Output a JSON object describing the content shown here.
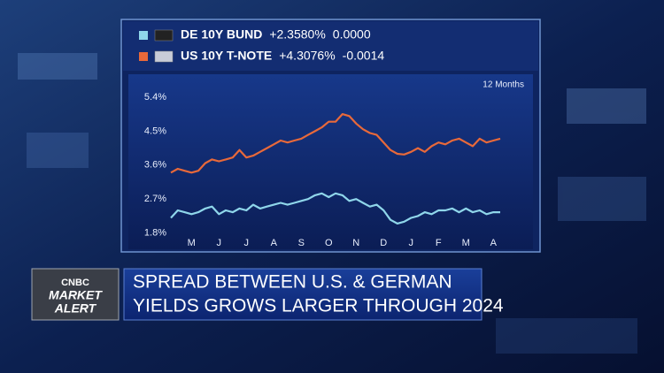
{
  "chart_data": {
    "type": "line",
    "period": "12 Months",
    "categories": [
      null,
      null,
      null,
      "M",
      null,
      null,
      null,
      "J",
      null,
      null,
      null,
      "J",
      null,
      null,
      null,
      "A",
      null,
      null,
      null,
      "S",
      null,
      null,
      null,
      "O",
      null,
      null,
      null,
      "N",
      null,
      null,
      null,
      "D",
      null,
      null,
      null,
      "J",
      null,
      null,
      null,
      "F",
      null,
      null,
      null,
      "M",
      null,
      null,
      null,
      "A",
      null
    ],
    "series": [
      {
        "name": "DE 10Y BUND",
        "last": "+2.3580%",
        "change": "0.0000",
        "color": "#8fd6ea",
        "values": [
          2.2,
          2.4,
          2.35,
          2.3,
          2.35,
          2.45,
          2.5,
          2.3,
          2.4,
          2.35,
          2.45,
          2.4,
          2.55,
          2.45,
          2.5,
          2.55,
          2.6,
          2.55,
          2.6,
          2.65,
          2.7,
          2.8,
          2.85,
          2.75,
          2.85,
          2.8,
          2.65,
          2.7,
          2.6,
          2.5,
          2.55,
          2.4,
          2.15,
          2.05,
          2.1,
          2.2,
          2.25,
          2.35,
          2.3,
          2.4,
          2.4,
          2.45,
          2.35,
          2.45,
          2.35,
          2.4,
          2.3,
          2.35,
          2.35
        ]
      },
      {
        "name": "US 10Y T-NOTE",
        "last": "+4.3076%",
        "change": "-0.0014",
        "color": "#e8693a",
        "values": [
          3.4,
          3.5,
          3.45,
          3.4,
          3.45,
          3.65,
          3.75,
          3.7,
          3.75,
          3.8,
          4.0,
          3.8,
          3.85,
          3.95,
          4.05,
          4.15,
          4.25,
          4.2,
          4.25,
          4.3,
          4.4,
          4.5,
          4.6,
          4.75,
          4.75,
          4.95,
          4.9,
          4.7,
          4.55,
          4.45,
          4.4,
          4.2,
          4.0,
          3.9,
          3.88,
          3.95,
          4.05,
          3.95,
          4.1,
          4.2,
          4.15,
          4.25,
          4.3,
          4.2,
          4.1,
          4.3,
          4.2,
          4.25,
          4.3
        ]
      }
    ],
    "ylim": [
      1.65,
      5.75
    ],
    "yticks": [
      {
        "value": 1.8,
        "label": "1.8%"
      },
      {
        "value": 2.7,
        "label": "2.7%"
      },
      {
        "value": 3.6,
        "label": "3.6%"
      },
      {
        "value": 4.5,
        "label": "4.5%"
      },
      {
        "value": 5.4,
        "label": "5.4%"
      }
    ]
  },
  "logo": {
    "brand": "CNBC",
    "line1": "MARKET",
    "line2": "ALERT"
  },
  "headline": [
    "SPREAD BETWEEN U.S. & GERMAN",
    "YIELDS GROWS LARGER THROUGH 2024"
  ]
}
